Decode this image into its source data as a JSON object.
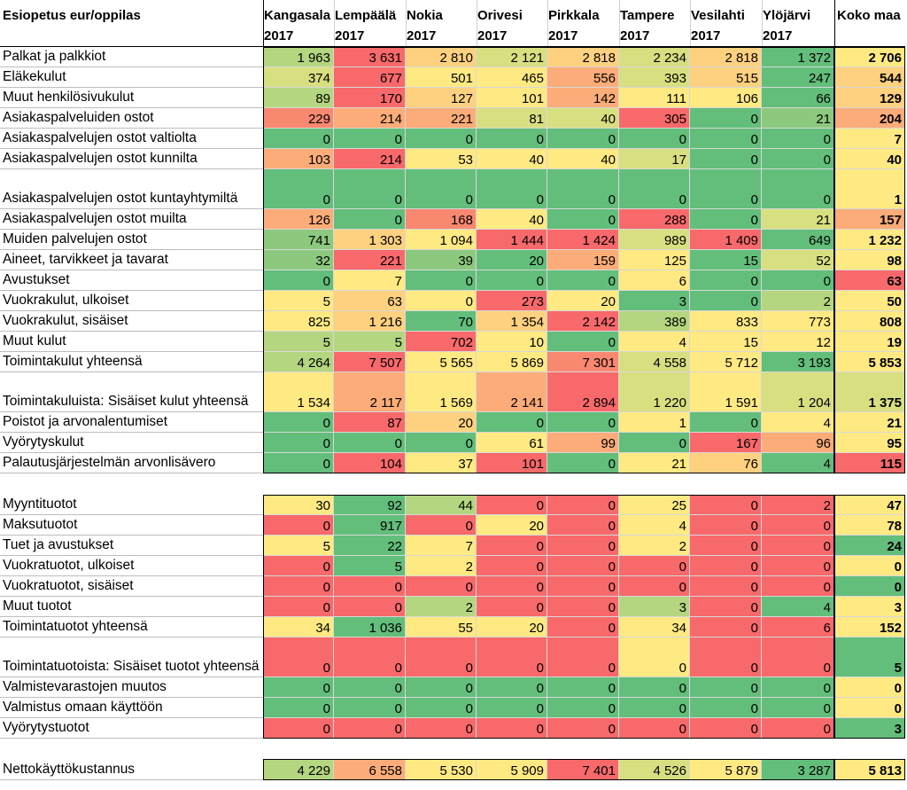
{
  "header": {
    "title": "Esiopetus eur/oppilas",
    "columns": [
      {
        "name": "Kangasala",
        "year": "2017"
      },
      {
        "name": "Lempäälä",
        "year": "2017"
      },
      {
        "name": "Nokia",
        "year": "2017"
      },
      {
        "name": "Orivesi",
        "year": "2017"
      },
      {
        "name": "Pirkkala",
        "year": "2017"
      },
      {
        "name": "Tampere",
        "year": "2017"
      },
      {
        "name": "Vesilahti",
        "year": "2017"
      },
      {
        "name": "Ylöjärvi",
        "year": "2017"
      }
    ],
    "total_column": "Koko maa"
  },
  "colors": {
    "dark_green": "#63be7b",
    "green": "#8cc97e",
    "light_green": "#b5d680",
    "yellow_green": "#d8df81",
    "yellow": "#fee983",
    "light_orange": "#fdd17f",
    "orange": "#fbac78",
    "red_orange": "#f98870",
    "red": "#f8696b"
  },
  "cost_rows": [
    {
      "label": "Palkat ja palkkiot",
      "values": [
        "1 963",
        "3 631",
        "2 810",
        "2 121",
        "2 818",
        "2 234",
        "2 818",
        "1 372"
      ],
      "total": "2 706",
      "colors": [
        "light_green",
        "red",
        "light_orange",
        "yellow_green",
        "light_orange",
        "yellow_green",
        "light_orange",
        "dark_green"
      ],
      "total_color": "yellow"
    },
    {
      "label": "Eläkekulut",
      "values": [
        "374",
        "677",
        "501",
        "465",
        "556",
        "393",
        "515",
        "247"
      ],
      "total": "544",
      "colors": [
        "yellow_green",
        "red",
        "yellow",
        "yellow",
        "orange",
        "yellow_green",
        "light_orange",
        "dark_green"
      ],
      "total_color": "light_orange"
    },
    {
      "label": "Muut henkilösivukulut",
      "values": [
        "89",
        "170",
        "127",
        "101",
        "142",
        "111",
        "106",
        "66"
      ],
      "total": "129",
      "colors": [
        "light_green",
        "red",
        "light_orange",
        "yellow",
        "orange",
        "yellow",
        "yellow",
        "dark_green"
      ],
      "total_color": "light_orange"
    },
    {
      "label": "Asiakaspalveluiden ostot",
      "values": [
        "229",
        "214",
        "221",
        "81",
        "40",
        "305",
        "0",
        "21"
      ],
      "total": "204",
      "colors": [
        "red_orange",
        "orange",
        "orange",
        "yellow_green",
        "yellow_green",
        "red",
        "dark_green",
        "green"
      ],
      "total_color": "orange"
    },
    {
      "label": "Asiakaspalvelujen ostot valtiolta",
      "values": [
        "0",
        "0",
        "0",
        "0",
        "0",
        "0",
        "0",
        "0"
      ],
      "total": "7",
      "colors": [
        "dark_green",
        "dark_green",
        "dark_green",
        "dark_green",
        "dark_green",
        "dark_green",
        "dark_green",
        "dark_green"
      ],
      "total_color": "yellow"
    },
    {
      "label": "Asiakaspalvelujen ostot kunnilta",
      "values": [
        "103",
        "214",
        "53",
        "40",
        "40",
        "17",
        "0",
        "0"
      ],
      "total": "40",
      "colors": [
        "orange",
        "red",
        "yellow",
        "yellow",
        "yellow",
        "yellow_green",
        "dark_green",
        "dark_green"
      ],
      "total_color": "yellow"
    },
    {
      "label": "Asiakaspalvelujen ostot kuntayhtymiltä",
      "values": [
        "0",
        "0",
        "0",
        "0",
        "0",
        "0",
        "0",
        "0"
      ],
      "total": "1",
      "colors": [
        "dark_green",
        "dark_green",
        "dark_green",
        "dark_green",
        "dark_green",
        "dark_green",
        "dark_green",
        "dark_green"
      ],
      "total_color": "yellow",
      "tall": true
    },
    {
      "label": "Asiakaspalvelujen ostot muilta",
      "values": [
        "126",
        "0",
        "168",
        "40",
        "0",
        "288",
        "0",
        "21"
      ],
      "total": "157",
      "colors": [
        "orange",
        "dark_green",
        "red_orange",
        "yellow",
        "dark_green",
        "red",
        "dark_green",
        "yellow_green"
      ],
      "total_color": "orange"
    },
    {
      "label": "Muiden palvelujen ostot",
      "values": [
        "741",
        "1 303",
        "1 094",
        "1 444",
        "1 424",
        "989",
        "1 409",
        "649"
      ],
      "total": "1 232",
      "colors": [
        "green",
        "light_orange",
        "yellow",
        "red",
        "red",
        "yellow_green",
        "red",
        "dark_green"
      ],
      "total_color": "yellow"
    },
    {
      "label": "Aineet, tarvikkeet ja tavarat",
      "values": [
        "32",
        "221",
        "39",
        "20",
        "159",
        "125",
        "15",
        "52"
      ],
      "total": "98",
      "colors": [
        "green",
        "red",
        "green",
        "dark_green",
        "orange",
        "yellow",
        "dark_green",
        "yellow_green"
      ],
      "total_color": "yellow"
    },
    {
      "label": "Avustukset",
      "values": [
        "0",
        "7",
        "0",
        "0",
        "0",
        "6",
        "0",
        "0"
      ],
      "total": "63",
      "colors": [
        "dark_green",
        "yellow",
        "dark_green",
        "dark_green",
        "dark_green",
        "yellow",
        "dark_green",
        "dark_green"
      ],
      "total_color": "red"
    },
    {
      "label": "Vuokrakulut, ulkoiset",
      "values": [
        "5",
        "63",
        "0",
        "273",
        "20",
        "3",
        "0",
        "2"
      ],
      "total": "50",
      "colors": [
        "yellow",
        "light_orange",
        "yellow",
        "red",
        "yellow",
        "dark_green",
        "dark_green",
        "light_green"
      ],
      "total_color": "yellow"
    },
    {
      "label": "Vuokrakulut, sisäiset",
      "values": [
        "825",
        "1 216",
        "70",
        "1 354",
        "2 142",
        "389",
        "833",
        "773"
      ],
      "total": "808",
      "colors": [
        "yellow",
        "light_orange",
        "dark_green",
        "light_orange",
        "red",
        "light_green",
        "yellow",
        "yellow"
      ],
      "total_color": "yellow"
    },
    {
      "label": "Muut kulut",
      "values": [
        "5",
        "5",
        "702",
        "10",
        "0",
        "4",
        "15",
        "12"
      ],
      "total": "19",
      "colors": [
        "light_green",
        "light_green",
        "red",
        "yellow",
        "dark_green",
        "yellow",
        "yellow",
        "yellow"
      ],
      "total_color": "yellow"
    },
    {
      "label": "Toimintakulut yhteensä",
      "values": [
        "4 264",
        "7 507",
        "5 565",
        "5 869",
        "7 301",
        "4 558",
        "5 712",
        "3 193"
      ],
      "total": "5 853",
      "colors": [
        "light_green",
        "red",
        "yellow",
        "yellow",
        "red_orange",
        "yellow_green",
        "yellow",
        "dark_green"
      ],
      "total_color": "yellow"
    },
    {
      "label": "Toimintakuluista: Sisäiset kulut yhteensä",
      "values": [
        "1 534",
        "2 117",
        "1 569",
        "2 141",
        "2 894",
        "1 220",
        "1 591",
        "1 204"
      ],
      "total": "1 375",
      "colors": [
        "yellow",
        "orange",
        "yellow",
        "orange",
        "red",
        "yellow_green",
        "yellow",
        "yellow_green"
      ],
      "total_color": "yellow_green",
      "tall": true
    },
    {
      "label": "Poistot ja arvonalentumiset",
      "values": [
        "0",
        "87",
        "20",
        "0",
        "0",
        "1",
        "0",
        "4"
      ],
      "total": "21",
      "colors": [
        "dark_green",
        "red",
        "light_orange",
        "dark_green",
        "dark_green",
        "yellow",
        "dark_green",
        "yellow"
      ],
      "total_color": "yellow"
    },
    {
      "label": "Vyörytyskulut",
      "values": [
        "0",
        "0",
        "0",
        "61",
        "99",
        "0",
        "167",
        "96"
      ],
      "total": "95",
      "colors": [
        "dark_green",
        "dark_green",
        "dark_green",
        "yellow",
        "orange",
        "dark_green",
        "red",
        "orange"
      ],
      "total_color": "yellow"
    },
    {
      "label": "Palautusjärjestelmän arvonlisävero",
      "values": [
        "0",
        "104",
        "37",
        "101",
        "0",
        "21",
        "76",
        "4"
      ],
      "total": "115",
      "colors": [
        "dark_green",
        "red",
        "yellow",
        "red",
        "dark_green",
        "yellow",
        "light_orange",
        "dark_green"
      ],
      "total_color": "red"
    }
  ],
  "income_rows": [
    {
      "label": "Myyntituotot",
      "values": [
        "30",
        "92",
        "44",
        "0",
        "0",
        "25",
        "0",
        "2"
      ],
      "total": "47",
      "colors": [
        "yellow",
        "dark_green",
        "light_green",
        "red",
        "red",
        "yellow",
        "red",
        "red"
      ],
      "total_color": "yellow"
    },
    {
      "label": "Maksutuotot",
      "values": [
        "0",
        "917",
        "0",
        "20",
        "0",
        "4",
        "0",
        "0"
      ],
      "total": "78",
      "colors": [
        "red",
        "dark_green",
        "red",
        "yellow",
        "red",
        "yellow",
        "red",
        "red"
      ],
      "total_color": "yellow"
    },
    {
      "label": "Tuet ja avustukset",
      "values": [
        "5",
        "22",
        "7",
        "0",
        "0",
        "2",
        "0",
        "0"
      ],
      "total": "24",
      "colors": [
        "yellow",
        "dark_green",
        "yellow",
        "red",
        "red",
        "yellow",
        "red",
        "red"
      ],
      "total_color": "dark_green"
    },
    {
      "label": "Vuokratuotot, ulkoiset",
      "values": [
        "0",
        "5",
        "2",
        "0",
        "0",
        "0",
        "0",
        "0"
      ],
      "total": "0",
      "colors": [
        "red",
        "dark_green",
        "yellow",
        "red",
        "red",
        "red",
        "red",
        "red"
      ],
      "total_color": "yellow"
    },
    {
      "label": "Vuokratuotot, sisäiset",
      "values": [
        "0",
        "0",
        "0",
        "0",
        "0",
        "0",
        "0",
        "0"
      ],
      "total": "0",
      "colors": [
        "red",
        "red",
        "red",
        "red",
        "red",
        "red",
        "red",
        "red"
      ],
      "total_color": "dark_green"
    },
    {
      "label": "Muut tuotot",
      "values": [
        "0",
        "0",
        "2",
        "0",
        "0",
        "3",
        "0",
        "4"
      ],
      "total": "3",
      "colors": [
        "red",
        "red",
        "light_green",
        "red",
        "red",
        "light_green",
        "red",
        "dark_green"
      ],
      "total_color": "yellow"
    },
    {
      "label": "Toimintatuotot yhteensä",
      "values": [
        "34",
        "1 036",
        "55",
        "20",
        "0",
        "34",
        "0",
        "6"
      ],
      "total": "152",
      "colors": [
        "yellow",
        "dark_green",
        "yellow",
        "yellow",
        "red",
        "yellow",
        "red",
        "red"
      ],
      "total_color": "yellow"
    },
    {
      "label": "Toimintatuotoista: Sisäiset tuotot yhteensä",
      "values": [
        "0",
        "0",
        "0",
        "0",
        "0",
        "0",
        "0",
        "0"
      ],
      "total": "5",
      "colors": [
        "red",
        "red",
        "red",
        "red",
        "red",
        "yellow",
        "red",
        "red"
      ],
      "total_color": "dark_green",
      "tall": true
    },
    {
      "label": "Valmistevarastojen muutos",
      "values": [
        "0",
        "0",
        "0",
        "0",
        "0",
        "0",
        "0",
        "0"
      ],
      "total": "0",
      "colors": [
        "dark_green",
        "dark_green",
        "dark_green",
        "dark_green",
        "dark_green",
        "dark_green",
        "dark_green",
        "dark_green"
      ],
      "total_color": "yellow"
    },
    {
      "label": "Valmistus omaan käyttöön",
      "values": [
        "0",
        "0",
        "0",
        "0",
        "0",
        "0",
        "0",
        "0"
      ],
      "total": "0",
      "colors": [
        "dark_green",
        "dark_green",
        "dark_green",
        "dark_green",
        "dark_green",
        "dark_green",
        "dark_green",
        "dark_green"
      ],
      "total_color": "yellow"
    },
    {
      "label": "Vyörytystuotot",
      "values": [
        "0",
        "0",
        "0",
        "0",
        "0",
        "0",
        "0",
        "0"
      ],
      "total": "3",
      "colors": [
        "red",
        "red",
        "red",
        "red",
        "red",
        "red",
        "red",
        "red"
      ],
      "total_color": "dark_green"
    }
  ],
  "net_row": {
    "label": "Nettokäyttökustannus",
    "values": [
      "4 229",
      "6 558",
      "5 530",
      "5 909",
      "7 401",
      "4 526",
      "5 879",
      "3 287"
    ],
    "total": "5 813",
    "colors": [
      "light_green",
      "orange",
      "yellow",
      "yellow",
      "red",
      "yellow_green",
      "yellow",
      "dark_green"
    ],
    "total_color": "yellow"
  }
}
